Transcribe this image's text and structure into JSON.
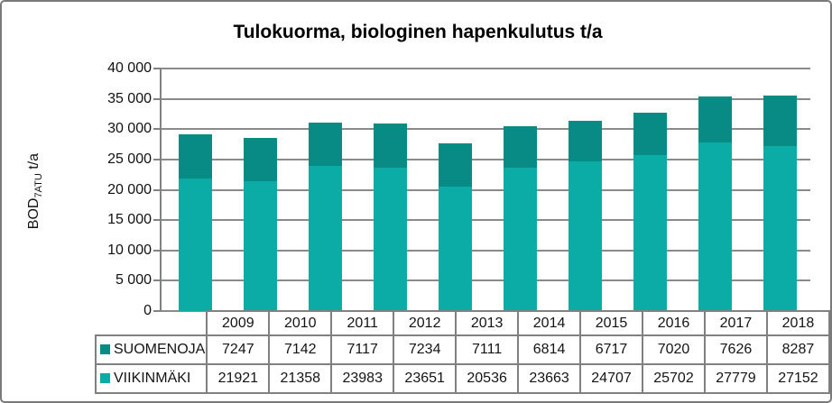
{
  "window": {
    "background": "#ffffff",
    "frame_border_color": "#7a7a7a"
  },
  "chart_data": {
    "type": "bar",
    "stacked": true,
    "title": "Tulokuorma, biologinen hapenkulutus t/a",
    "ylabel": {
      "prefix": "BOD",
      "subscript": "7ATU",
      "suffix": " t/a"
    },
    "xlabel": "",
    "categories": [
      "2009",
      "2010",
      "2011",
      "2012",
      "2013",
      "2014",
      "2015",
      "2016",
      "2017",
      "2018"
    ],
    "series": [
      {
        "name": "SUOMENOJA",
        "color": "#088B84",
        "values": [
          7247,
          7142,
          7117,
          7234,
          7111,
          6814,
          6717,
          7020,
          7626,
          8287
        ]
      },
      {
        "name": "VIIKINMÄKI",
        "color": "#0BACA6",
        "values": [
          21921,
          21358,
          23983,
          23651,
          20536,
          23663,
          24707,
          25702,
          27779,
          27152
        ]
      }
    ],
    "stack_order_bottom_to_top": [
      "VIIKINMÄKI",
      "SUOMENOJA"
    ],
    "ylim": [
      0,
      40000
    ],
    "ytick_step": 5000,
    "ytick_labels": [
      "0",
      "5 000",
      "10 000",
      "15 000",
      "20 000",
      "25 000",
      "30 000",
      "35 000",
      "40 000"
    ],
    "grid": "horizontal",
    "gridline_color": "#8a8a8a",
    "legend_position": "table-left",
    "table_border_color": "#808080"
  }
}
